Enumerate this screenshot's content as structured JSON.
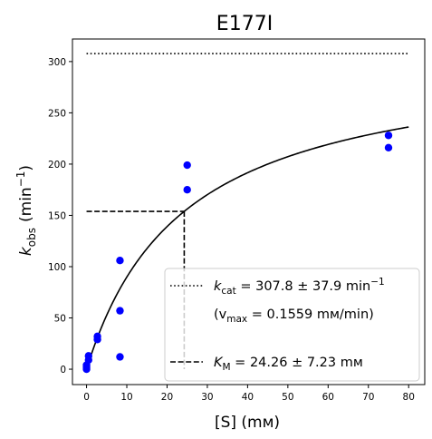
{
  "chart_data": {
    "type": "scatter",
    "title": "E177I",
    "xlabel": "[S] (mм)",
    "ylabel_main": "k",
    "ylabel_sub": "obs",
    "ylabel_unit": "(min",
    "ylabel_sup": "−1",
    "ylabel_close": ")",
    "xlim": [
      -3.5,
      84
    ],
    "ylim": [
      -15,
      322
    ],
    "x_ticks": [
      0,
      10,
      20,
      30,
      40,
      50,
      60,
      70,
      80
    ],
    "y_ticks": [
      0,
      50,
      100,
      150,
      200,
      250,
      300
    ],
    "grid": false,
    "legend_position": "lower-right",
    "colors": {
      "points": "#0000ff",
      "lines": "#000000",
      "legend_border": "#cccccc"
    },
    "points": [
      {
        "x": 0,
        "y": 0
      },
      {
        "x": 0,
        "y": 2
      },
      {
        "x": 0,
        "y": 4
      },
      {
        "x": 0.5,
        "y": 9
      },
      {
        "x": 0.5,
        "y": 13
      },
      {
        "x": 2.7,
        "y": 29
      },
      {
        "x": 2.7,
        "y": 32
      },
      {
        "x": 8.3,
        "y": 12
      },
      {
        "x": 8.3,
        "y": 57
      },
      {
        "x": 8.3,
        "y": 106
      },
      {
        "x": 25,
        "y": 175
      },
      {
        "x": 25,
        "y": 199
      },
      {
        "x": 75,
        "y": 216
      },
      {
        "x": 75,
        "y": 228
      }
    ],
    "fit": {
      "kcat": 307.8,
      "KM": 24.26,
      "x_start": 0,
      "x_end": 80
    },
    "kcat_line": {
      "y": 307.8,
      "x_start": 0,
      "x_end": 80
    },
    "km_line": {
      "x": 24.26,
      "y": 153.9,
      "x_start": 0
    },
    "legend": {
      "kcat_var": "k",
      "kcat_sub": "cat",
      "kcat_text": " = 307.8 ± 37.9 min",
      "kcat_sup": "−1",
      "vmax_open": "(v",
      "vmax_sub": "max",
      "vmax_text": " = 0.1559 mм/min)",
      "km_var": "K",
      "km_sub": "M",
      "km_text": " = 24.26 ± 7.23 mм"
    }
  }
}
